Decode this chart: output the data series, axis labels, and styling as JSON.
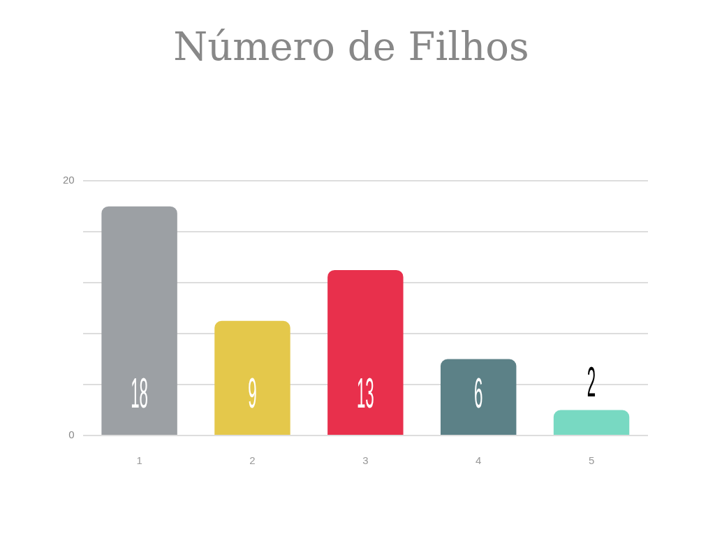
{
  "chart_data": {
    "type": "bar",
    "title": "Número de Filhos",
    "categories": [
      "1",
      "2",
      "3",
      "4",
      "5"
    ],
    "values": [
      18,
      9,
      13,
      6,
      2
    ],
    "colors": [
      "#9ca0a4",
      "#e4c84b",
      "#e8304c",
      "#5c8187",
      "#78d9c2"
    ],
    "ylim": [
      0,
      20
    ],
    "yticks": [
      0,
      {
        "value": 4,
        "label": null
      },
      {
        "value": 8,
        "label": null
      },
      {
        "value": 12,
        "label": null
      },
      {
        "value": 16,
        "label": null
      },
      20
    ],
    "grid": "y",
    "data_labels": true
  }
}
